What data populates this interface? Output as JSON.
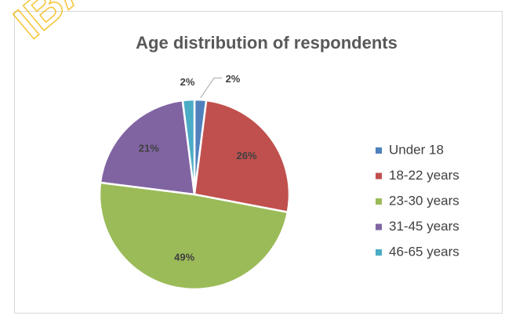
{
  "watermark": "IBA",
  "chart_data": {
    "type": "pie",
    "title": "Age distribution of respondents",
    "categories": [
      "Under 18",
      "18-22 years",
      "23-30 years",
      "31-45 years",
      "46-65 years"
    ],
    "values": [
      2,
      26,
      49,
      21,
      2
    ],
    "value_labels": [
      "2%",
      "26%",
      "49%",
      "21%",
      "2%"
    ],
    "colors": [
      "#4f81bd",
      "#c0504d",
      "#9bbb59",
      "#8064a2",
      "#4bacc6"
    ],
    "legend": "right"
  }
}
